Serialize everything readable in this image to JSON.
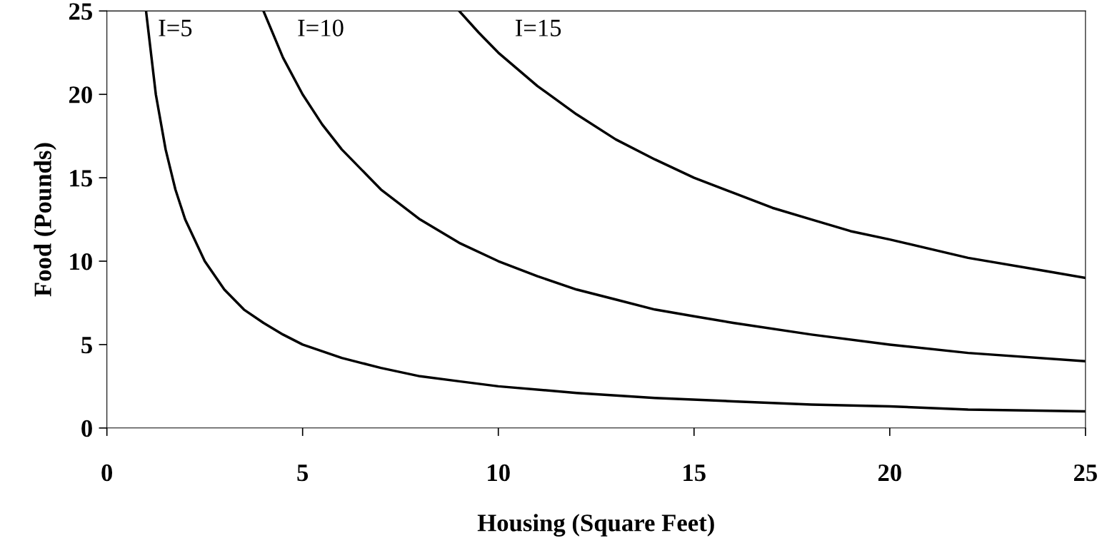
{
  "chart_data": {
    "type": "line",
    "xlabel": "Housing (Square Feet)",
    "ylabel": "Food (Pounds)",
    "xlim": [
      0,
      25
    ],
    "ylim": [
      0,
      25
    ],
    "xticks": [
      0,
      5,
      10,
      15,
      20,
      25
    ],
    "yticks": [
      0,
      5,
      10,
      15,
      20,
      25
    ],
    "grid": false,
    "legend": false,
    "marker": "none",
    "line_style": "solid",
    "series": [
      {
        "name": "I=5",
        "color": "#000000",
        "x": [
          1,
          1.25,
          1.5,
          1.75,
          2,
          2.5,
          3,
          3.5,
          4,
          4.5,
          5,
          6,
          7,
          8,
          9,
          10,
          12,
          14,
          16,
          18,
          20,
          22,
          25
        ],
        "values": [
          25,
          20,
          16.7,
          14.3,
          12.5,
          10,
          8.3,
          7.1,
          6.3,
          5.6,
          5,
          4.2,
          3.6,
          3.1,
          2.8,
          2.5,
          2.1,
          1.8,
          1.6,
          1.4,
          1.3,
          1.1,
          1
        ]
      },
      {
        "name": "I=10",
        "color": "#000000",
        "x": [
          4,
          4.5,
          5,
          5.5,
          6,
          7,
          8,
          9,
          10,
          11,
          12,
          13,
          14,
          15,
          16,
          18,
          20,
          22,
          25
        ],
        "values": [
          25,
          22.2,
          20,
          18.2,
          16.7,
          14.3,
          12.5,
          11.1,
          10,
          9.1,
          8.3,
          7.7,
          7.1,
          6.7,
          6.3,
          5.6,
          5,
          4.5,
          4
        ]
      },
      {
        "name": "I=15",
        "color": "#000000",
        "x": [
          9,
          9.5,
          10,
          11,
          12,
          13,
          14,
          15,
          16,
          17,
          18,
          19,
          20,
          22,
          24,
          25
        ],
        "values": [
          25,
          23.7,
          22.5,
          20.5,
          18.8,
          17.3,
          16.1,
          15,
          14.1,
          13.2,
          12.5,
          11.8,
          11.3,
          10.2,
          9.4,
          9
        ]
      }
    ]
  }
}
